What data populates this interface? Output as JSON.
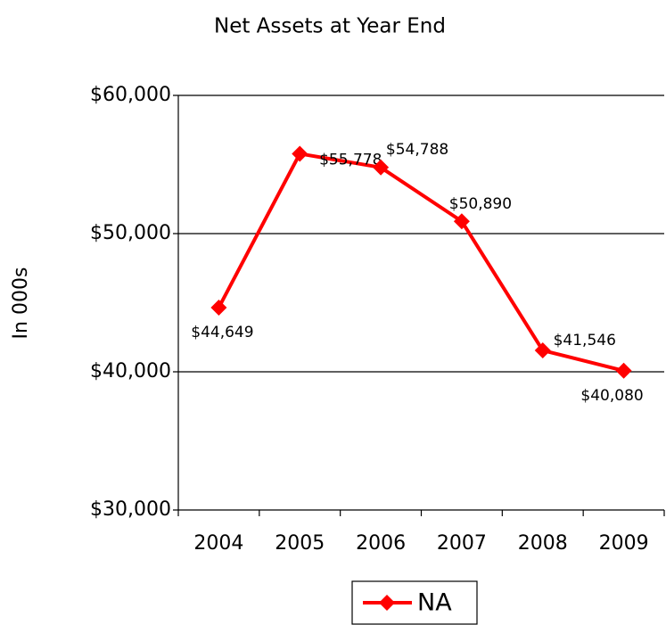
{
  "chart_data": {
    "type": "line",
    "title": "Net Assets at Year End",
    "y_label": "In 000s",
    "categories": [
      "2004",
      "2005",
      "2006",
      "2007",
      "2008",
      "2009"
    ],
    "series": [
      {
        "name": "NA",
        "color": "#ff0000",
        "values": [
          44649,
          55778,
          54788,
          50890,
          41546,
          40080
        ],
        "value_labels": [
          "$44,649",
          "$55,778",
          "$54,788",
          "$50,890",
          "$41,546",
          "$40,080"
        ]
      }
    ],
    "ylim": [
      30000,
      60000
    ],
    "yticks": [
      {
        "value": 30000,
        "label": "$30,000"
      },
      {
        "value": 40000,
        "label": "$40,000"
      },
      {
        "value": 50000,
        "label": "$50,000"
      },
      {
        "value": 60000,
        "label": "$60,000"
      }
    ],
    "grid": true,
    "legend": "bottom"
  }
}
